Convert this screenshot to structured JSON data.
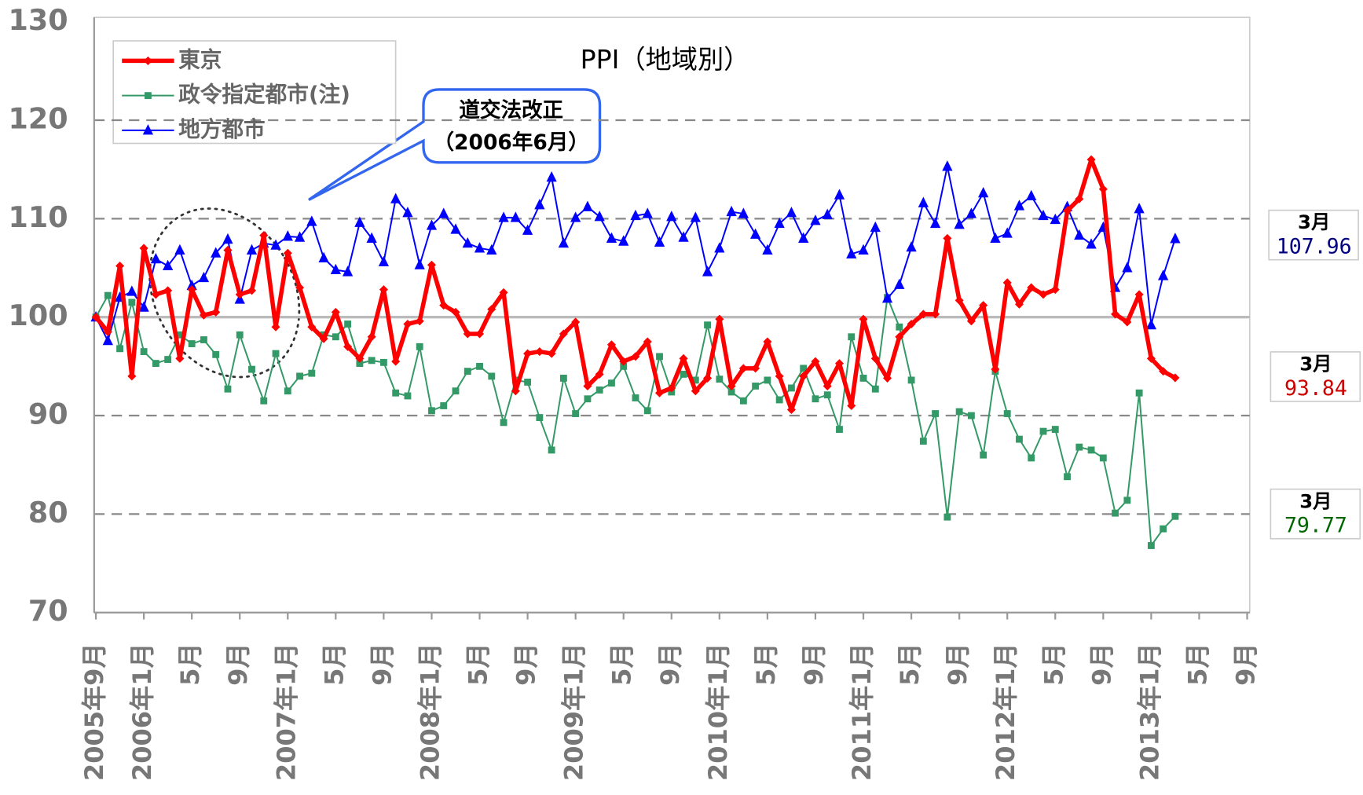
{
  "chart_data": {
    "type": "line",
    "title": "PPI（地域別）",
    "annotations": [
      "道交法改正",
      "（2006年6月）"
    ],
    "categories": [
      "2005年9月",
      null,
      null,
      null,
      "2006年1月",
      null,
      null,
      null,
      "5月",
      null,
      null,
      null,
      "9月",
      null,
      null,
      null,
      "2007年1月",
      null,
      null,
      null,
      "5月",
      null,
      null,
      null,
      "9月",
      null,
      null,
      null,
      "2008年1月",
      null,
      null,
      null,
      "5月",
      null,
      null,
      null,
      "9月",
      null,
      null,
      null,
      "2009年1月",
      null,
      null,
      null,
      "5月",
      null,
      null,
      null,
      "9月",
      null,
      null,
      null,
      "2010年1月",
      null,
      null,
      null,
      "5月",
      null,
      null,
      null,
      "9月",
      null,
      null,
      null,
      "2011年1月",
      null,
      null,
      null,
      "5月",
      null,
      null,
      null,
      "9月",
      null,
      null,
      null,
      "2012年1月",
      null,
      null,
      null,
      "5月",
      null,
      null,
      null,
      "9月",
      null,
      null,
      null,
      "2013年1月",
      null,
      null,
      null,
      "5月",
      null,
      null,
      null,
      "9月"
    ],
    "ylim": [
      70,
      130
    ],
    "yticks": [
      70,
      80,
      90,
      100,
      110,
      120,
      130
    ],
    "grid": true,
    "baseline": 100,
    "legend": "upper left",
    "series": [
      {
        "name": "東京",
        "color": "#ff0000",
        "marker": "diamond",
        "end_label": "3月",
        "values": [
          100,
          98.5,
          105.2,
          94,
          107,
          102.3,
          102.7,
          95.8,
          102.8,
          100.2,
          100.5,
          106.8,
          102.3,
          102.7,
          108.3,
          99,
          106.5,
          103,
          99,
          97.8,
          100.5,
          97,
          95.8,
          98,
          102.8,
          95.5,
          99.3,
          99.6,
          105.3,
          101.2,
          100.5,
          98.3,
          98.3,
          100.8,
          102.5,
          92.5,
          96.3,
          96.5,
          96.3,
          98.3,
          99.5,
          93,
          94.2,
          97.2,
          95.5,
          96,
          97.5,
          92.3,
          92.8,
          95.8,
          92.5,
          93.8,
          99.8,
          93,
          94.8,
          94.8,
          97.5,
          94,
          90.6,
          94,
          95.5,
          93,
          95.3,
          91,
          99.8,
          95.8,
          93.8,
          98,
          99.3,
          100.3,
          100.3,
          108,
          101.7,
          99.6,
          101.2,
          94.7,
          103.5,
          101.3,
          103,
          102.3,
          102.8,
          110.8,
          112,
          116,
          113,
          100.3,
          99.5,
          102.3,
          95.8,
          94.5,
          93.84,
          null,
          null,
          null,
          null,
          null,
          null
        ]
      },
      {
        "name": "政令指定都市(注)",
        "color": "#339966",
        "marker": "square",
        "end_label": "3月",
        "values": [
          100,
          102.2,
          96.8,
          101.5,
          96.5,
          95.3,
          95.7,
          98.2,
          97.3,
          97.7,
          96.2,
          92.7,
          98.2,
          94.7,
          91.5,
          96.3,
          92.5,
          94,
          94.3,
          98.2,
          98,
          99.3,
          95.3,
          95.6,
          95.4,
          92.3,
          92,
          97,
          90.5,
          91,
          92.5,
          94.5,
          95,
          94,
          89.3,
          93.6,
          93.4,
          89.8,
          86.5,
          93.8,
          90.2,
          91.7,
          92.6,
          93.3,
          95,
          91.8,
          90.5,
          96,
          92.4,
          94.2,
          93.6,
          99.2,
          93.7,
          92.4,
          91.5,
          93,
          93.6,
          91.6,
          92.8,
          94.8,
          91.7,
          92.1,
          88.6,
          98,
          93.8,
          92.7,
          102,
          99,
          93.6,
          87.4,
          90.2,
          79.7,
          90.4,
          90,
          86,
          94.5,
          90.2,
          87.6,
          85.7,
          88.4,
          88.6,
          83.8,
          86.8,
          86.5,
          85.7,
          80.1,
          81.4,
          92.3,
          76.8,
          78.5,
          79.77,
          null,
          null,
          null,
          null,
          null,
          null
        ]
      },
      {
        "name": "地方都市",
        "color": "#0000ff",
        "marker": "triangle",
        "end_label": "3月",
        "values": [
          100,
          97.6,
          102,
          102.6,
          101,
          105.9,
          105.2,
          106.8,
          103.2,
          104,
          106.5,
          107.9,
          101.8,
          106.8,
          107.5,
          107.3,
          108.2,
          108.1,
          109.7,
          106,
          104.8,
          104.6,
          109.6,
          108,
          105.6,
          112,
          110.6,
          105.3,
          109.3,
          110.5,
          108.9,
          107.5,
          107,
          106.8,
          110.1,
          110.1,
          108.8,
          111.4,
          114.2,
          107.5,
          110.1,
          111.2,
          110.2,
          108,
          107.7,
          110.3,
          110.5,
          107.6,
          110.2,
          108.1,
          110.1,
          104.6,
          107,
          110.7,
          110.5,
          108.4,
          106.8,
          109.5,
          110.6,
          108,
          109.8,
          110.4,
          112.4,
          106.4,
          106.8,
          109.1,
          101.9,
          103.3,
          107.1,
          111.6,
          109.5,
          115.3,
          109.4,
          110.5,
          112.6,
          108,
          108.5,
          111.3,
          112.3,
          110.3,
          109.9,
          111.2,
          108.3,
          107.4,
          109.1,
          103,
          105,
          111,
          99.2,
          104.2,
          107.96,
          null,
          null,
          null,
          null,
          null,
          null
        ]
      }
    ]
  }
}
